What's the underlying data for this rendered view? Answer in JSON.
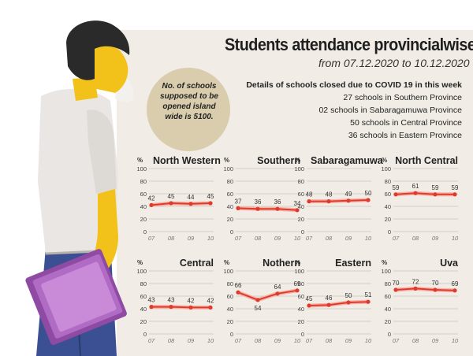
{
  "title": "Students attendance provincialwise",
  "subtitle": "from 07.12.2020 to 10.12.2020",
  "note": "No. of schools supposed to be opened island wide is 5100.",
  "details": {
    "heading": "Details of schools closed due to COVID 19 in this week",
    "lines": [
      "27 schools in Southern Province",
      "02 schools in Sabaragamuwa Province",
      "50 schools in Central Province",
      "36 schools in Eastern Province"
    ]
  },
  "colors": {
    "line": "#e03a2c",
    "grid": "#c9c3b8",
    "background": "#f1ede6",
    "bubble": "#d9cdae"
  },
  "chart_data": [
    {
      "type": "line",
      "title": "North Western",
      "categories": [
        "07",
        "08",
        "09",
        "10"
      ],
      "values": [
        42,
        45,
        44,
        45
      ],
      "ylabel": "%",
      "yticks": [
        "0",
        "20",
        "40",
        "60",
        "80",
        "100"
      ],
      "ylim": [
        0,
        100
      ],
      "grid": true,
      "title_align": "left"
    },
    {
      "type": "line",
      "title": "Southern",
      "categories": [
        "07",
        "08",
        "09",
        "10"
      ],
      "values": [
        37,
        36,
        36,
        34
      ],
      "ylabel": "%",
      "yticks": [
        "0",
        "20",
        "40",
        "60",
        "80",
        "100"
      ],
      "ylim": [
        0,
        100
      ],
      "grid": true,
      "title_align": "right"
    },
    {
      "type": "line",
      "title": "Sabaragamuwa",
      "categories": [
        "07",
        "08",
        "09",
        "10"
      ],
      "values": [
        48,
        48,
        49,
        50
      ],
      "ylabel": "%",
      "yticks": [
        "0",
        "20",
        "40",
        "60",
        "80",
        "100"
      ],
      "ylim": [
        0,
        100
      ],
      "grid": true,
      "title_align": "left"
    },
    {
      "type": "line",
      "title": "North Central",
      "categories": [
        "07",
        "08",
        "09",
        "10"
      ],
      "values": [
        59,
        61,
        59,
        59
      ],
      "ylabel": "%",
      "yticks": [
        "0",
        "20",
        "40",
        "60",
        "80",
        "100"
      ],
      "ylim": [
        0,
        100
      ],
      "grid": true,
      "title_align": "right"
    },
    {
      "type": "line",
      "title": "Central",
      "categories": [
        "07",
        "08",
        "09",
        "10"
      ],
      "values": [
        43,
        43,
        42,
        42
      ],
      "ylabel": "%",
      "yticks": [
        "0",
        "20",
        "40",
        "60",
        "80",
        "100"
      ],
      "ylim": [
        0,
        100
      ],
      "grid": true,
      "title_align": "right"
    },
    {
      "type": "line",
      "title": "Nothern",
      "categories": [
        "07",
        "08",
        "09",
        "10"
      ],
      "values": [
        66,
        54,
        64,
        69
      ],
      "ylabel": "%",
      "yticks": [
        "0",
        "20",
        "40",
        "60",
        "80",
        "100"
      ],
      "ylim": [
        0,
        100
      ],
      "grid": true,
      "title_align": "right"
    },
    {
      "type": "line",
      "title": "Eastern",
      "categories": [
        "07",
        "08",
        "09",
        "10"
      ],
      "values": [
        45,
        46,
        50,
        51
      ],
      "ylabel": "%",
      "yticks": [
        "0",
        "20",
        "40",
        "60",
        "80",
        "100"
      ],
      "ylim": [
        0,
        100
      ],
      "grid": true,
      "title_align": "right"
    },
    {
      "type": "line",
      "title": "Uva",
      "categories": [
        "07",
        "08",
        "09",
        "10"
      ],
      "values": [
        70,
        72,
        70,
        69
      ],
      "ylabel": "%",
      "yticks": [
        "0",
        "20",
        "40",
        "60",
        "80",
        "100"
      ],
      "ylim": [
        0,
        100
      ],
      "grid": true,
      "title_align": "right"
    }
  ]
}
